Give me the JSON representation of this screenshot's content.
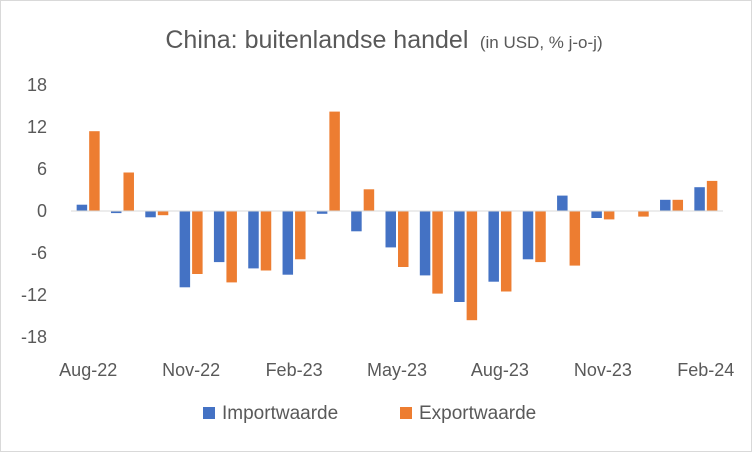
{
  "chart_data": {
    "type": "bar",
    "title": "China: buitenlandse handel",
    "subtitle": "(in USD, % j-o-j)",
    "xlabel": "",
    "ylabel": "",
    "ylim": [
      -18,
      18
    ],
    "yticks": [
      18,
      12,
      6,
      0,
      -6,
      -12,
      -18
    ],
    "xtick_labels": [
      "Aug-22",
      "Nov-22",
      "Feb-23",
      "May-23",
      "Aug-23",
      "Nov-23",
      "Feb-24"
    ],
    "categories": [
      "Aug-22",
      "Sep-22",
      "Oct-22",
      "Nov-22",
      "Dec-22",
      "Jan-23",
      "Feb-23",
      "Mar-23",
      "Apr-23",
      "May-23",
      "Jun-23",
      "Jul-23",
      "Aug-23",
      "Sep-23",
      "Oct-23",
      "Nov-23",
      "Dec-23",
      "Jan-24",
      "Feb-24"
    ],
    "grid": false,
    "legend_position": "bottom",
    "series": [
      {
        "name": "Importwaarde",
        "color": "#4472C4",
        "values": [
          0.9,
          -0.3,
          -0.9,
          -10.9,
          -7.3,
          -8.2,
          -9.1,
          -0.4,
          -2.9,
          -5.2,
          -9.2,
          -13.0,
          -10.1,
          -6.9,
          2.2,
          -1.0,
          0.0,
          1.6,
          3.4
        ]
      },
      {
        "name": "Exportwaarde",
        "color": "#ED7D31",
        "values": [
          11.4,
          5.5,
          -0.6,
          -9.0,
          -10.2,
          -8.5,
          -6.9,
          14.2,
          3.1,
          -8.0,
          -11.8,
          -15.6,
          -11.5,
          -7.3,
          -7.8,
          -1.2,
          -0.8,
          1.6,
          4.3
        ]
      }
    ]
  }
}
